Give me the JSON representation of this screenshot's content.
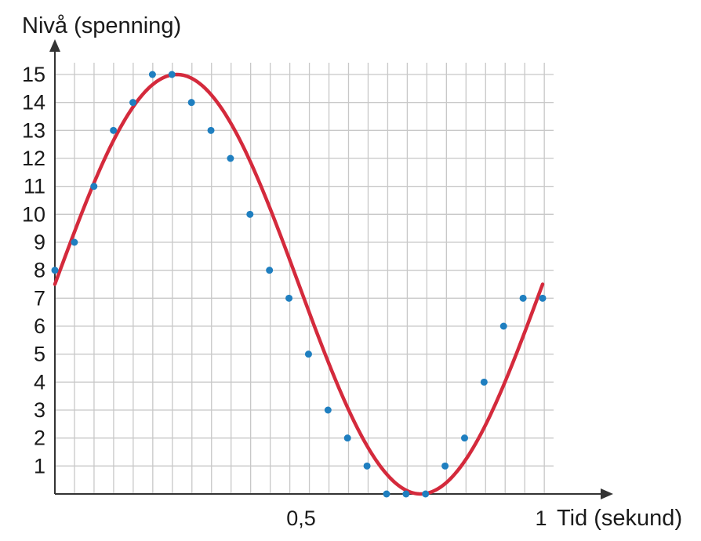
{
  "chart_data": {
    "type": "scatter",
    "ylabel": "Nivå (spenning)",
    "xlabel": "Tid (sekund)",
    "xlim": [
      0,
      1
    ],
    "ylim": [
      0,
      15
    ],
    "x_tick_labels": [
      {
        "x": 0.5,
        "label": "0,5"
      },
      {
        "x": 1,
        "label": "1"
      }
    ],
    "y_ticks": [
      1,
      2,
      3,
      4,
      5,
      6,
      7,
      8,
      9,
      10,
      11,
      12,
      13,
      14,
      15
    ],
    "grid": true,
    "sample_points": {
      "x": [
        0,
        0.04,
        0.08,
        0.12,
        0.16,
        0.2,
        0.24,
        0.28,
        0.32,
        0.36,
        0.4,
        0.44,
        0.48,
        0.52,
        0.56,
        0.6,
        0.64,
        0.68,
        0.72,
        0.76,
        0.8,
        0.84,
        0.88,
        0.92,
        0.96,
        1.0
      ],
      "y": [
        8,
        9,
        11,
        13,
        14,
        15,
        15,
        14,
        13,
        12,
        10,
        8,
        7,
        5,
        3,
        2,
        1,
        0,
        0,
        0,
        1,
        2,
        4,
        6,
        7,
        7
      ]
    },
    "curve": {
      "function": "sine",
      "offset": 7.5,
      "amplitude": 7.5,
      "frequency_hz": 1
    },
    "colors": {
      "curve": "#d42a3c",
      "points": "#1f7fc0",
      "grid": "#c8c8c8",
      "axis": "#333333"
    }
  }
}
